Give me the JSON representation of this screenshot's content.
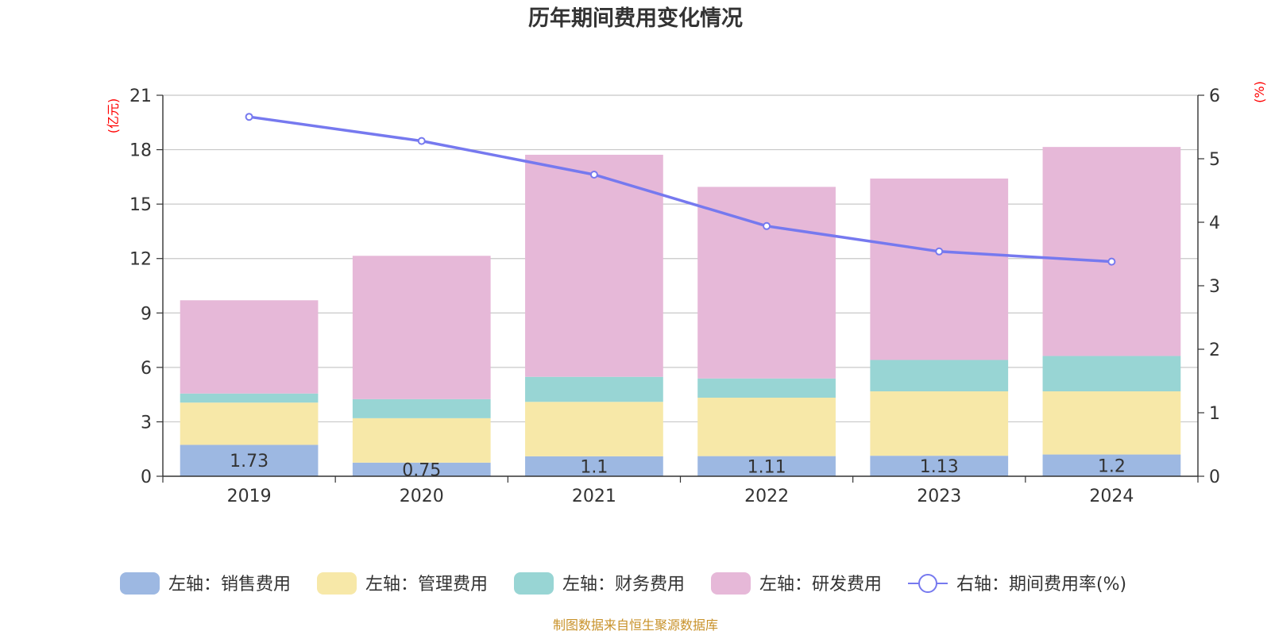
{
  "chart_data": {
    "type": "bar",
    "stacked": true,
    "title": "历年期间费用变化情况",
    "categories": [
      "2019",
      "2020",
      "2021",
      "2022",
      "2023",
      "2024"
    ],
    "left_axis": {
      "unit_label": "(亿元)",
      "min": 0,
      "max": 21,
      "interval": 3,
      "ticks": [
        "0",
        "3",
        "6",
        "9",
        "12",
        "15",
        "18",
        "21"
      ]
    },
    "right_axis": {
      "unit_label": "(%)",
      "min": 0,
      "max": 6,
      "interval": 1,
      "ticks": [
        "0",
        "1",
        "2",
        "3",
        "4",
        "5",
        "6"
      ]
    },
    "series": [
      {
        "name": "左轴：销售费用",
        "axis": "left",
        "type": "bar",
        "color": "#9db8e2",
        "values": [
          1.73,
          0.75,
          1.1,
          1.11,
          1.13,
          1.2
        ],
        "labels": [
          "1.73",
          "0.75",
          "1.1",
          "1.11",
          "1.13",
          "1.2"
        ]
      },
      {
        "name": "左轴：管理费用",
        "axis": "left",
        "type": "bar",
        "color": "#f7e8a8",
        "values": [
          2.33,
          2.45,
          3.0,
          3.22,
          3.55,
          3.48
        ]
      },
      {
        "name": "左轴：财务费用",
        "axis": "left",
        "type": "bar",
        "color": "#98d5d4",
        "values": [
          0.5,
          1.05,
          1.38,
          1.06,
          1.73,
          1.95
        ]
      },
      {
        "name": "左轴：研发费用",
        "axis": "left",
        "type": "bar",
        "color": "#e6b8d8",
        "values": [
          5.14,
          7.9,
          12.24,
          10.56,
          10.0,
          11.52
        ]
      },
      {
        "name": "右轴：期间费用率(%)",
        "axis": "right",
        "type": "line",
        "color": "#7679ef",
        "values": [
          5.66,
          5.28,
          4.75,
          3.94,
          3.54,
          3.38
        ]
      }
    ],
    "legend_position": "bottom",
    "grid": true,
    "source": "制图数据来自恒生聚源数据库"
  }
}
